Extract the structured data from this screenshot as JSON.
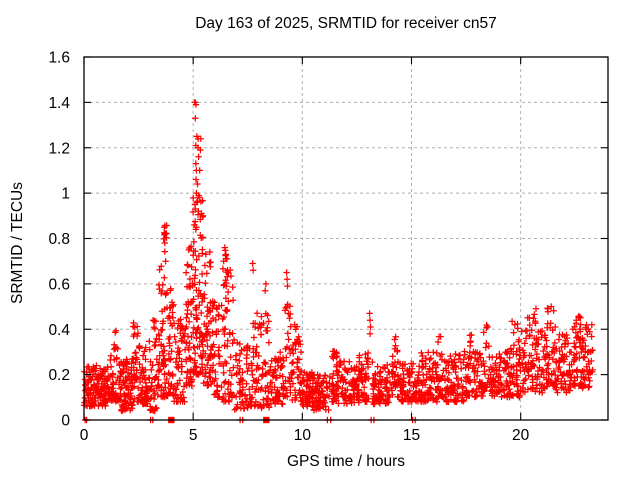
{
  "figure": {
    "title": "Day 163 of 2025, SRMTID for receiver cn57",
    "xlabel": "GPS time / hours",
    "ylabel": "SRMTID / TECUs"
  },
  "chart_data": {
    "type": "scatter",
    "title": "Day 163 of 2025, SRMTID for receiver cn57",
    "xlabel": "GPS time / hours",
    "ylabel": "SRMTID / TECUs",
    "xlim": [
      0,
      24
    ],
    "ylim": [
      0,
      1.6
    ],
    "xticks": [
      0,
      5,
      10,
      15,
      20
    ],
    "xtick_labels": [
      "0",
      "5",
      "10",
      "15",
      "20"
    ],
    "yticks": [
      0,
      0.2,
      0.4,
      0.6,
      0.8,
      1,
      1.2,
      1.4,
      1.6
    ],
    "ytick_labels": [
      "0",
      "0.2",
      "0.4",
      "0.6",
      "0.8",
      "1",
      "1.2",
      "1.4",
      "1.6"
    ],
    "grid": true,
    "legend": false,
    "marker": "plus",
    "colors": {
      "points": "#ff0000",
      "axis": "#000000",
      "grid": "#b0b0b0",
      "background": "#ffffff",
      "text": "#000000"
    },
    "peak": {
      "x": 5.1,
      "y": 1.4
    },
    "point_clusters": [
      [
        0.0,
        1.2,
        150,
        0.06,
        0.24,
        1.3
      ],
      [
        1.2,
        1.6,
        40,
        0.08,
        0.33,
        1.5
      ],
      [
        1.38,
        1.52,
        6,
        0.25,
        0.44,
        1.0
      ],
      [
        1.6,
        2.25,
        90,
        0.04,
        0.27,
        1.3
      ],
      [
        2.25,
        2.6,
        40,
        0.08,
        0.45,
        1.6
      ],
      [
        2.6,
        3.0,
        50,
        0.07,
        0.35,
        1.5
      ],
      [
        3.0,
        3.35,
        40,
        0.04,
        0.45,
        1.5
      ],
      [
        3.35,
        3.75,
        60,
        0.1,
        0.72,
        1.7
      ],
      [
        3.6,
        3.8,
        8,
        0.7,
        0.86,
        1.0
      ],
      [
        3.75,
        4.1,
        45,
        0.1,
        0.6,
        1.7
      ],
      [
        4.1,
        4.65,
        55,
        0.08,
        0.45,
        1.5
      ],
      [
        4.65,
        4.95,
        50,
        0.15,
        0.8,
        1.6
      ],
      [
        4.95,
        5.45,
        90,
        0.2,
        1.0,
        1.5
      ],
      [
        5.45,
        5.8,
        50,
        0.15,
        0.75,
        1.6
      ],
      [
        5.8,
        6.25,
        50,
        0.1,
        0.55,
        1.5
      ],
      [
        6.25,
        6.9,
        60,
        0.08,
        0.62,
        1.6
      ],
      [
        6.35,
        6.75,
        10,
        0.58,
        0.76,
        1.0
      ],
      [
        6.9,
        7.55,
        55,
        0.04,
        0.35,
        1.4
      ],
      [
        7.55,
        8.05,
        45,
        0.06,
        0.5,
        1.6
      ],
      [
        8.05,
        8.5,
        45,
        0.05,
        0.5,
        1.5
      ],
      [
        8.5,
        9.15,
        60,
        0.07,
        0.3,
        1.3
      ],
      [
        9.2,
        9.45,
        25,
        0.1,
        0.55,
        1.4
      ],
      [
        9.45,
        10.0,
        50,
        0.08,
        0.42,
        1.5
      ],
      [
        10.0,
        10.5,
        55,
        0.06,
        0.22,
        1.2
      ],
      [
        10.5,
        11.25,
        70,
        0.04,
        0.2,
        1.2
      ],
      [
        11.25,
        11.6,
        35,
        0.08,
        0.32,
        1.4
      ],
      [
        11.6,
        12.6,
        90,
        0.07,
        0.26,
        1.3
      ],
      [
        12.6,
        13.05,
        45,
        0.08,
        0.3,
        1.4
      ],
      [
        13.2,
        14.1,
        80,
        0.07,
        0.26,
        1.3
      ],
      [
        14.1,
        14.4,
        30,
        0.1,
        0.37,
        1.5
      ],
      [
        14.4,
        15.3,
        80,
        0.08,
        0.25,
        1.3
      ],
      [
        15.3,
        16.2,
        85,
        0.08,
        0.3,
        1.4
      ],
      [
        16.2,
        16.5,
        25,
        0.1,
        0.42,
        1.6
      ],
      [
        16.5,
        17.4,
        85,
        0.08,
        0.3,
        1.4
      ],
      [
        17.4,
        17.8,
        35,
        0.1,
        0.38,
        1.5
      ],
      [
        17.8,
        18.3,
        45,
        0.1,
        0.3,
        1.4
      ],
      [
        18.3,
        18.55,
        20,
        0.12,
        0.42,
        1.5
      ],
      [
        18.55,
        19.5,
        85,
        0.1,
        0.3,
        1.4
      ],
      [
        19.5,
        20.1,
        55,
        0.1,
        0.45,
        1.5
      ],
      [
        20.1,
        20.7,
        55,
        0.12,
        0.5,
        1.5
      ],
      [
        20.7,
        21.2,
        45,
        0.12,
        0.4,
        1.4
      ],
      [
        21.2,
        21.6,
        40,
        0.15,
        0.52,
        1.5
      ],
      [
        21.6,
        22.3,
        65,
        0.12,
        0.38,
        1.3
      ],
      [
        22.3,
        22.75,
        45,
        0.15,
        0.46,
        1.4
      ],
      [
        22.75,
        23.3,
        55,
        0.14,
        0.42,
        1.2
      ]
    ],
    "notable_points": [
      [
        5.07,
        1.4
      ],
      [
        5.1,
        1.4
      ],
      [
        5.13,
        1.39
      ],
      [
        5.1,
        1.33
      ],
      [
        5.17,
        1.25
      ],
      [
        5.23,
        1.24
      ],
      [
        5.35,
        1.24
      ],
      [
        5.12,
        1.21
      ],
      [
        5.22,
        1.2
      ],
      [
        5.33,
        1.19
      ],
      [
        5.25,
        1.16
      ],
      [
        5.12,
        1.13
      ],
      [
        5.15,
        1.1
      ],
      [
        5.3,
        1.1
      ],
      [
        5.13,
        1.06
      ],
      [
        5.2,
        1.04
      ],
      [
        5.15,
        1.0
      ],
      [
        5.25,
        0.99
      ],
      [
        5.17,
        0.96
      ],
      [
        5.1,
        0.93
      ],
      [
        5.24,
        0.92
      ],
      [
        5.38,
        0.91
      ],
      [
        5.45,
        0.9
      ],
      [
        5.05,
        0.86
      ],
      [
        5.12,
        0.84
      ],
      [
        3.68,
        0.85
      ],
      [
        3.72,
        0.82
      ],
      [
        3.7,
        0.78
      ],
      [
        6.45,
        0.76
      ],
      [
        6.5,
        0.73
      ],
      [
        6.55,
        0.71
      ],
      [
        6.4,
        0.7
      ],
      [
        7.72,
        0.69
      ],
      [
        7.75,
        0.66
      ],
      [
        9.28,
        0.65
      ],
      [
        9.3,
        0.62
      ],
      [
        9.32,
        0.59
      ],
      [
        8.33,
        0.6
      ],
      [
        8.3,
        0.57
      ],
      [
        9.65,
        0.42
      ],
      [
        9.7,
        0.4
      ],
      [
        13.08,
        0.47
      ],
      [
        13.1,
        0.44
      ],
      [
        13.12,
        0.41
      ],
      [
        13.1,
        0.38
      ],
      [
        21.4,
        0.5
      ],
      [
        20.7,
        0.49
      ],
      [
        20.4,
        0.45
      ],
      [
        22.55,
        0.44
      ],
      [
        23.0,
        0.4
      ]
    ],
    "on_axis_markers": {
      "plus_x": [
        0.05,
        0.12,
        3.05,
        3.15,
        7.15,
        7.27,
        11.15,
        11.3,
        13.15,
        13.28,
        15.05,
        15.17
      ],
      "square_x": [
        4.0,
        8.35
      ]
    }
  }
}
